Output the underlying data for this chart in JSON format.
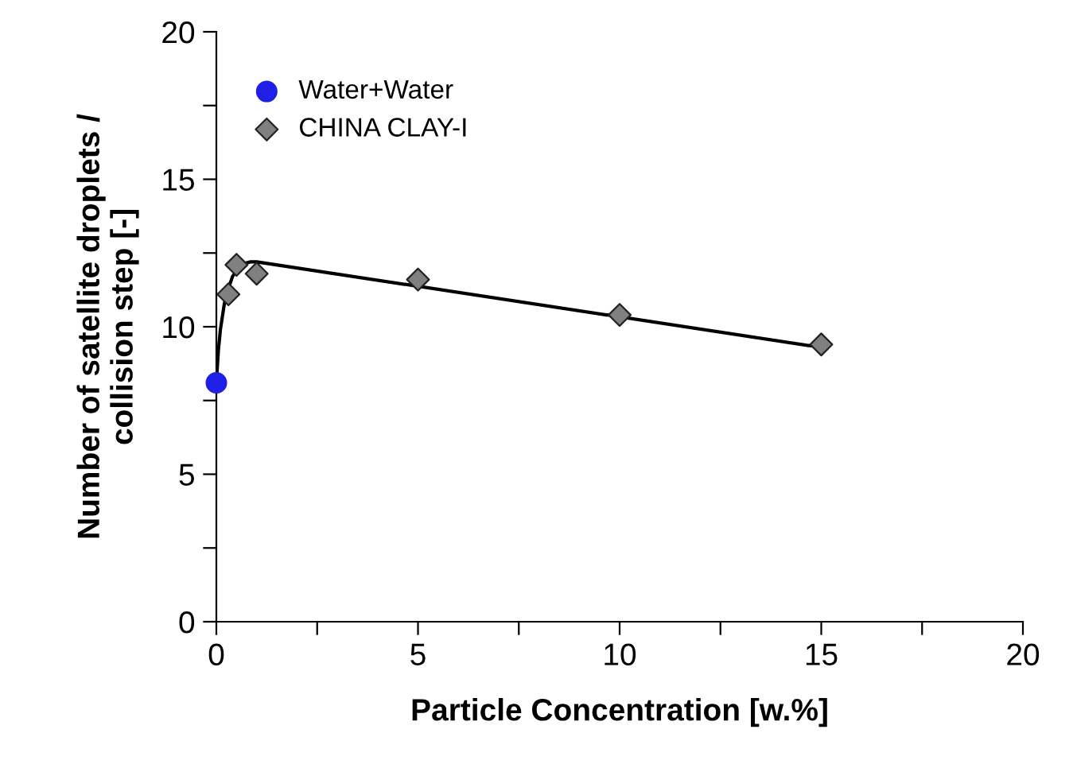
{
  "chart_data": {
    "type": "scatter",
    "xlabel": "Particle Concentration [w.%]",
    "ylabel": "Number of satellite droplets /\ncollision step [-]",
    "xlim": [
      0,
      20
    ],
    "ylim": [
      0,
      20
    ],
    "xticks": [
      0,
      {
        "value": 2.5,
        "label": null
      },
      5,
      {
        "value": 7.5,
        "label": null
      },
      10,
      {
        "value": 12.5,
        "label": null
      },
      15,
      {
        "value": 17.5,
        "label": null
      },
      20
    ],
    "yticks": [
      0,
      {
        "value": 2.5,
        "label": null
      },
      5,
      {
        "value": 7.5,
        "label": null
      },
      10,
      {
        "value": 12.5,
        "label": null
      },
      15,
      {
        "value": 17.5,
        "label": null
      },
      20
    ],
    "grid": false,
    "legend": "top left",
    "series": [
      {
        "name": "Water+Water",
        "marker": "circle",
        "color": "#1f1fe6",
        "x": [
          0
        ],
        "values": [
          8.1
        ]
      },
      {
        "name": "CHINA CLAY-I",
        "marker": "diamond",
        "color": "#808080",
        "x": [
          0.3,
          0.5,
          1,
          5,
          10,
          15
        ],
        "values": [
          11.1,
          12.1,
          11.8,
          11.6,
          10.4,
          9.4
        ]
      },
      {
        "type": "line",
        "marker": "none",
        "line_style": "solid",
        "color": "#000000",
        "x": [
          0,
          0.05,
          0.1,
          0.2,
          0.3,
          0.4,
          0.55,
          0.7,
          0.85,
          1,
          15
        ],
        "values": [
          8.1,
          9.2,
          9.9,
          10.8,
          11.3,
          11.7,
          12.0,
          12.15,
          12.2,
          12.2,
          9.3
        ]
      }
    ]
  }
}
